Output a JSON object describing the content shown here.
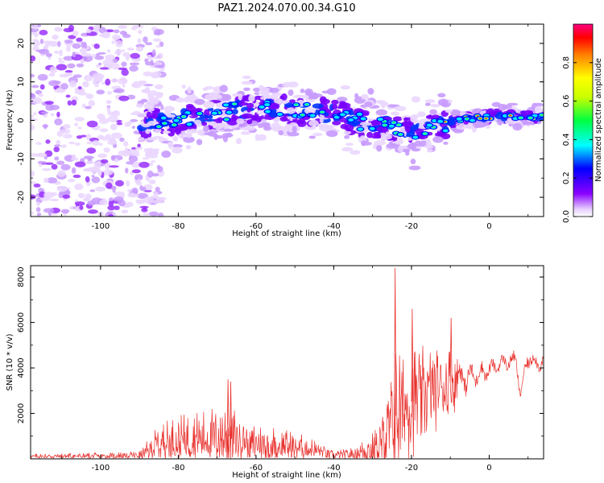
{
  "figure_title": "PAZ1.2024.070.00.34.G10",
  "chart_data": [
    {
      "type": "heatmap",
      "xlabel": "Height of straight line (km)",
      "ylabel": "Frequency (Hz)",
      "xlim": [
        -118,
        14
      ],
      "ylim": [
        -25,
        25
      ],
      "xticks": [
        -100,
        -80,
        -60,
        -40,
        -20,
        0
      ],
      "xtick_labels": [
        "-100",
        "-80",
        "-60",
        "-40",
        "-20",
        "0"
      ],
      "yticks": [
        -20,
        -10,
        0,
        10,
        20
      ],
      "ytick_labels": [
        "-20",
        "-10",
        "0",
        "10",
        "20"
      ],
      "colorbar": {
        "label": "Normalized spectral amplitude",
        "range": [
          0,
          1
        ],
        "ticks": [
          0.0,
          0.2,
          0.4,
          0.6,
          0.8
        ],
        "tick_labels": [
          "0.0",
          "0.2",
          "0.4",
          "0.6",
          "0.8"
        ]
      },
      "ridge": {
        "x": [
          -88,
          -80,
          -70,
          -60,
          -50,
          -40,
          -35,
          -30,
          -25,
          -20,
          -15,
          -10,
          -5,
          0,
          5,
          10,
          14
        ],
        "freq": [
          -0.5,
          0.0,
          2.0,
          3.0,
          2.5,
          2.0,
          0.0,
          -1.0,
          -2.0,
          -3.0,
          -1.5,
          -0.5,
          0.5,
          1.0,
          1.0,
          1.0,
          1.0
        ]
      },
      "noise_region": {
        "x_range": [
          -118,
          -88
        ],
        "freq_range": [
          -25,
          25
        ]
      },
      "grid": false
    },
    {
      "type": "line",
      "xlabel": "Height of straight line (km)",
      "ylabel": "SNR (10 * v/v)",
      "xlim": [
        -118,
        14
      ],
      "ylim": [
        0,
        8500
      ],
      "xticks": [
        -100,
        -80,
        -60,
        -40,
        -20,
        0
      ],
      "xtick_labels": [
        "-100",
        "-80",
        "-60",
        "-40",
        "-20",
        "0"
      ],
      "yticks": [
        2000,
        4000,
        6000,
        8000
      ],
      "ytick_labels": [
        "2000",
        "4000",
        "6000",
        "8000"
      ],
      "color": "#e8322e",
      "envelope": {
        "x": [
          -118,
          -110,
          -100,
          -90,
          -87,
          -85,
          -80,
          -75,
          -70,
          -67,
          -65,
          -60,
          -55,
          -50,
          -45,
          -40,
          -35,
          -30,
          -28,
          -25,
          -24,
          -22,
          -20,
          -18,
          -15,
          -10,
          -5,
          0,
          3,
          5,
          7,
          8,
          10,
          12,
          14
        ],
        "base": [
          100,
          120,
          120,
          150,
          400,
          700,
          800,
          900,
          950,
          1000,
          900,
          700,
          600,
          500,
          400,
          150,
          200,
          400,
          600,
          1500,
          2000,
          2200,
          2500,
          2700,
          3000,
          3400,
          3600,
          3900,
          4200,
          4300,
          4300,
          2800,
          4500,
          4200,
          4300
        ],
        "amp": [
          120,
          150,
          150,
          200,
          600,
          900,
          1100,
          1200,
          1400,
          1900,
          1200,
          900,
          800,
          700,
          500,
          200,
          300,
          800,
          1400,
          2500,
          4000,
          2600,
          2500,
          2400,
          2000,
          1600,
          900,
          600,
          500,
          600,
          600,
          400,
          700,
          600,
          600
        ]
      },
      "peaks": [
        {
          "x": -24.2,
          "y": 8400
        },
        {
          "x": -19.8,
          "y": 6600
        },
        {
          "x": -9.8,
          "y": 6200
        },
        {
          "x": -67.2,
          "y": 3500
        },
        {
          "x": -66.5,
          "y": 3400
        }
      ],
      "grid": false
    }
  ]
}
